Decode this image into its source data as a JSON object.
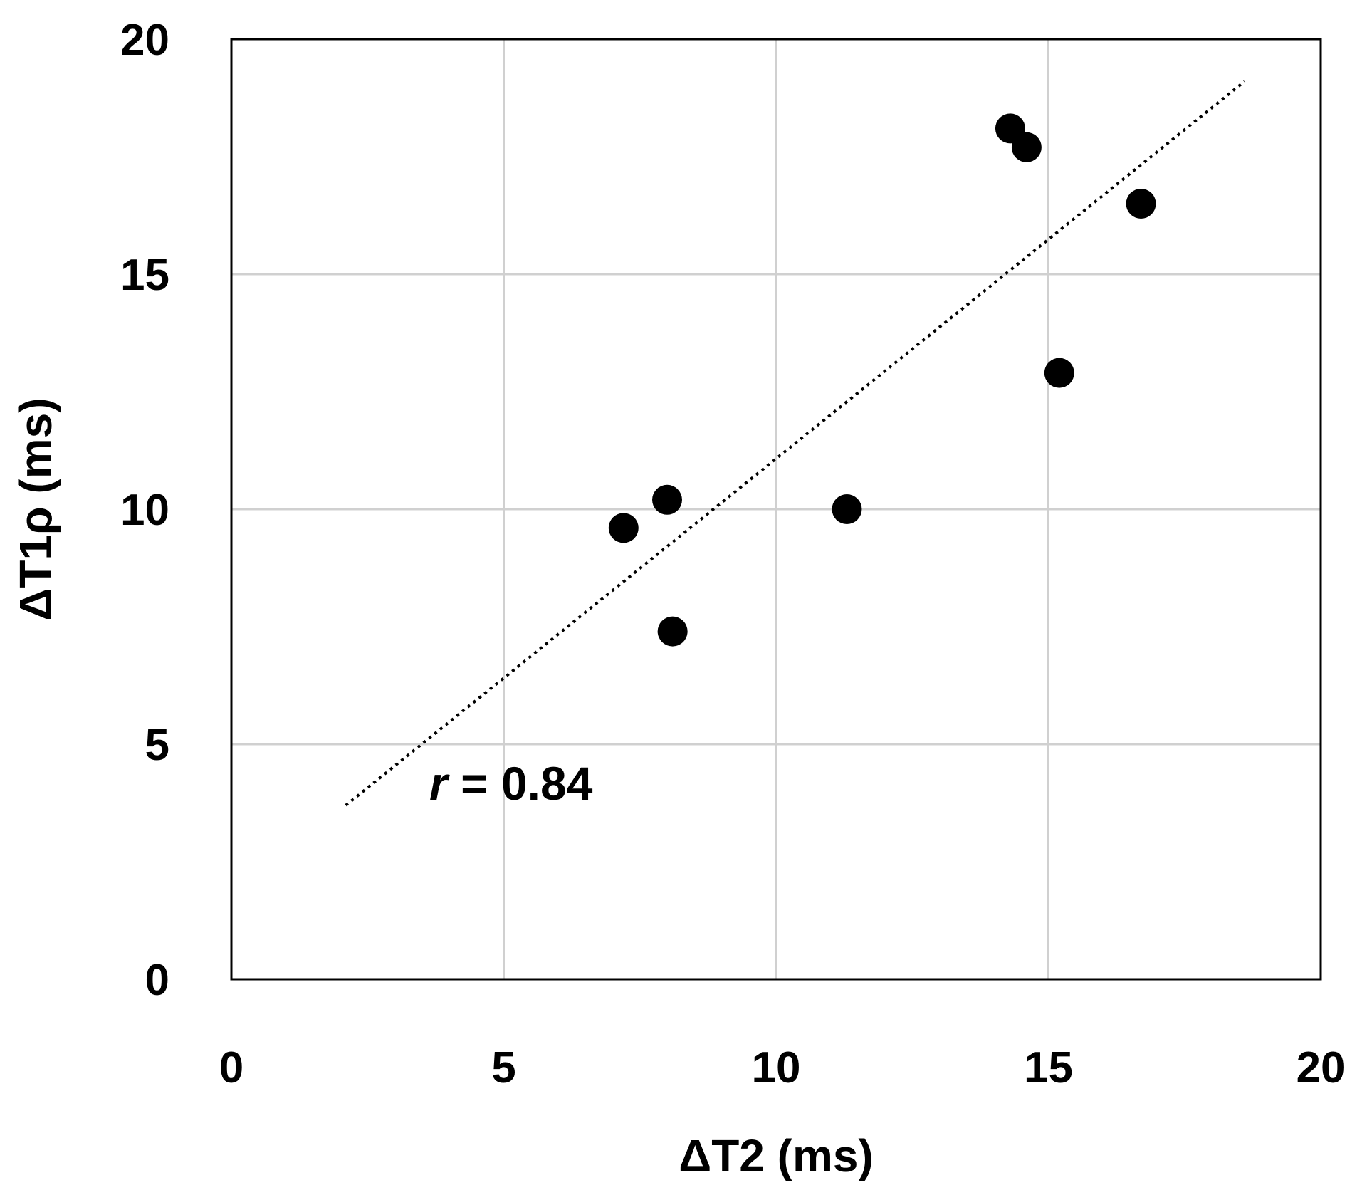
{
  "chart_data": {
    "type": "scatter",
    "xlabel": "ΔT2 (ms)",
    "ylabel": "ΔT1ρ (ms)",
    "xlim": [
      0,
      20
    ],
    "ylim": [
      0,
      20
    ],
    "x_ticks": [
      "0",
      "5",
      "10",
      "15",
      "20"
    ],
    "y_ticks": [
      "0",
      "5",
      "10",
      "15",
      "20"
    ],
    "grid": true,
    "points": [
      {
        "x": 7.2,
        "y": 9.6
      },
      {
        "x": 8.0,
        "y": 10.2
      },
      {
        "x": 8.1,
        "y": 7.4
      },
      {
        "x": 11.3,
        "y": 10.0
      },
      {
        "x": 14.3,
        "y": 18.1
      },
      {
        "x": 14.6,
        "y": 17.7
      },
      {
        "x": 15.2,
        "y": 12.9
      },
      {
        "x": 16.7,
        "y": 16.5
      }
    ],
    "trendline": {
      "style": "dotted",
      "x_start": 2.1,
      "y_start": 3.7,
      "x_end": 18.6,
      "y_end": 19.1
    },
    "annotation": {
      "variable": "r",
      "text": " = 0.84",
      "x": 3.7,
      "y": 3.7
    },
    "colors": {
      "points": "#000000",
      "grid": "#d0d0d0",
      "axis": "#000000",
      "trendline": "#000000"
    }
  }
}
